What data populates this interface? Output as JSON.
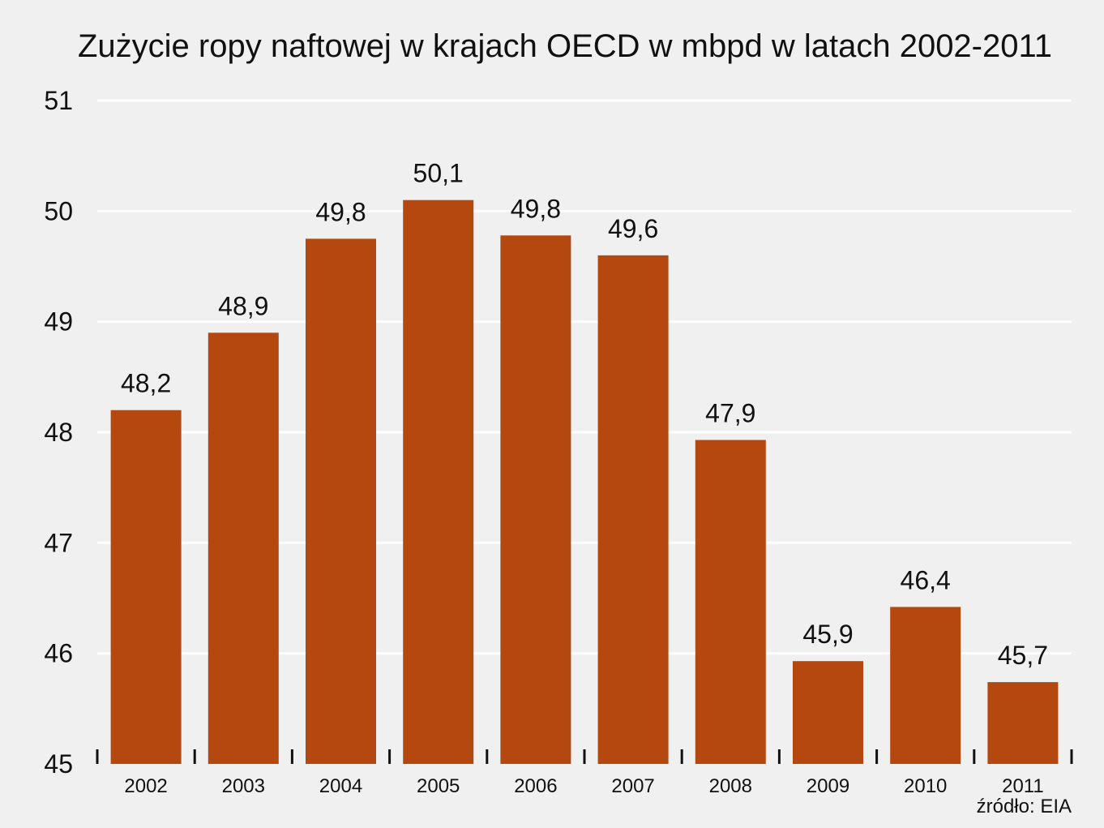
{
  "chart_data": {
    "type": "bar",
    "title": "Zużycie ropy naftowej w krajach OECD w mbpd w latach 2002-2011",
    "xlabel": "",
    "ylabel": "",
    "categories": [
      "2002",
      "2003",
      "2004",
      "2005",
      "2006",
      "2007",
      "2008",
      "2009",
      "2010",
      "2011"
    ],
    "values": [
      48.2,
      48.9,
      49.75,
      50.1,
      49.78,
      49.6,
      47.93,
      45.93,
      46.42,
      45.74
    ],
    "value_labels": [
      "48,2",
      "48,9",
      "49,8",
      "50,1",
      "49,8",
      "49,6",
      "47,9",
      "45,9",
      "46,4",
      "45,7"
    ],
    "ylim": [
      45,
      51
    ],
    "yticks": [
      45,
      46,
      47,
      48,
      49,
      50,
      51
    ],
    "grid": true,
    "bar_color": "#b5480e",
    "gridline_color": "#ffffff",
    "background_color": "#f0f0f0",
    "source": "źródło: EIA"
  }
}
